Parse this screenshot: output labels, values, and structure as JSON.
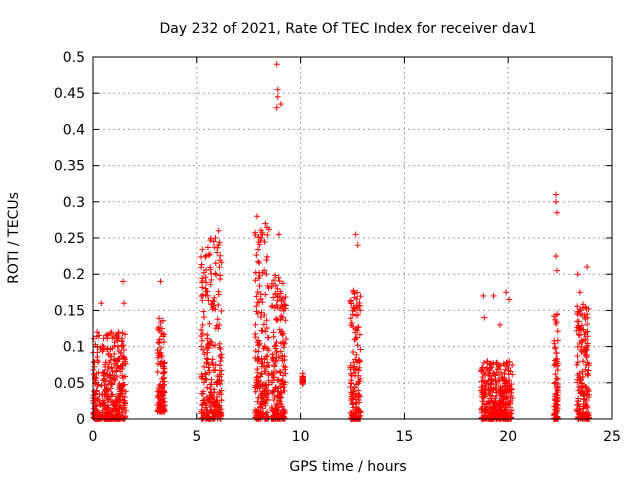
{
  "chart_data": {
    "type": "scatter",
    "title": "Day 232 of 2021, Rate Of TEC Index for receiver dav1",
    "xlabel": "GPS time / hours",
    "ylabel": "ROTI / TECUs",
    "xlim": [
      0,
      25
    ],
    "ylim": [
      0,
      0.5
    ],
    "xticks": [
      "0",
      "5",
      "10",
      "15",
      "20",
      "25"
    ],
    "yticks": [
      "0",
      "0.05",
      "0.1",
      "0.15",
      "0.2",
      "0.25",
      "0.3",
      "0.35",
      "0.4",
      "0.45",
      "0.5"
    ],
    "grid": true,
    "marker": "+",
    "color": "#ff0000",
    "clusters": [
      {
        "x_start": 0.0,
        "x_end": 1.6,
        "y_min": 0.0,
        "y_max": 0.12,
        "outliers": [
          [
            0.4,
            0.16
          ],
          [
            1.45,
            0.19
          ],
          [
            1.5,
            0.16
          ],
          [
            0.2,
            0.12
          ],
          [
            0.9,
            0.12
          ]
        ]
      },
      {
        "x_start": 3.1,
        "x_end": 3.45,
        "y_min": 0.01,
        "y_max": 0.14,
        "outliers": [
          [
            3.25,
            0.19
          ]
        ]
      },
      {
        "x_start": 5.2,
        "x_end": 6.2,
        "y_min": 0.0,
        "y_max": 0.25,
        "outliers": [
          [
            6.05,
            0.26
          ],
          [
            5.9,
            0.25
          ]
        ]
      },
      {
        "x_start": 7.8,
        "x_end": 8.5,
        "y_min": 0.0,
        "y_max": 0.27,
        "outliers": [
          [
            7.9,
            0.28
          ],
          [
            8.1,
            0.25
          ]
        ]
      },
      {
        "x_start": 8.6,
        "x_end": 9.3,
        "y_min": 0.0,
        "y_max": 0.2,
        "outliers": [
          [
            8.85,
            0.49
          ],
          [
            8.9,
            0.455
          ],
          [
            8.9,
            0.445
          ],
          [
            8.85,
            0.43
          ],
          [
            9.05,
            0.435
          ],
          [
            8.95,
            0.255
          ]
        ]
      },
      {
        "x_start": 10.1,
        "x_end": 10.1,
        "y_min": 0.05,
        "y_max": 0.06,
        "outliers": [
          [
            10.1,
            0.063
          ],
          [
            10.1,
            0.048
          ]
        ]
      },
      {
        "x_start": 12.4,
        "x_end": 12.9,
        "y_min": 0.0,
        "y_max": 0.19,
        "outliers": [
          [
            12.65,
            0.255
          ],
          [
            12.75,
            0.24
          ]
        ]
      },
      {
        "x_start": 18.7,
        "x_end": 20.2,
        "y_min": 0.0,
        "y_max": 0.08,
        "outliers": [
          [
            18.8,
            0.17
          ],
          [
            19.3,
            0.17
          ],
          [
            19.9,
            0.175
          ],
          [
            20.05,
            0.165
          ],
          [
            18.85,
            0.14
          ],
          [
            19.6,
            0.13
          ]
        ]
      },
      {
        "x_start": 22.2,
        "x_end": 22.4,
        "y_min": 0.0,
        "y_max": 0.15,
        "outliers": [
          [
            22.3,
            0.31
          ],
          [
            22.3,
            0.3
          ],
          [
            22.35,
            0.285
          ],
          [
            22.3,
            0.225
          ],
          [
            22.35,
            0.205
          ]
        ]
      },
      {
        "x_start": 23.3,
        "x_end": 23.9,
        "y_min": 0.0,
        "y_max": 0.16,
        "outliers": [
          [
            23.35,
            0.2
          ],
          [
            23.8,
            0.21
          ],
          [
            23.45,
            0.175
          ]
        ]
      }
    ]
  }
}
